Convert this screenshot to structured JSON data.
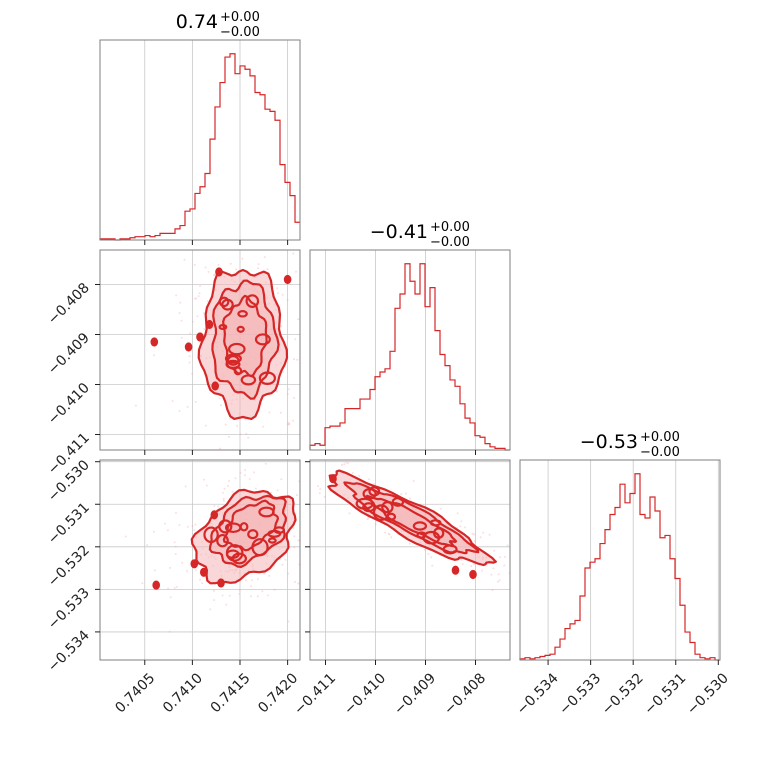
{
  "colors": {
    "series": "#d62728",
    "fill": "#f4b6b8",
    "scatter": "#f2a4a6",
    "frame": "#7f7f7f",
    "grid": "#c8c8c8"
  },
  "chart_data": {
    "type": "corner",
    "parameters": [
      {
        "name": "p0",
        "range": [
          0.74003,
          0.74213
        ],
        "ticks": [
          "0.7405",
          "0.7410",
          "0.7415",
          "0.7420"
        ],
        "tick_values": [
          0.7405,
          0.741,
          0.7415,
          0.742
        ],
        "title": {
          "main": "0.74",
          "sup": "+0.00",
          "sub": "−0.00"
        },
        "histogram": {
          "bin_start": 0.74003,
          "bin_width": 5.25e-05,
          "counts": [
            1,
            1,
            1,
            0,
            1,
            1,
            2,
            3,
            3,
            4,
            3,
            4,
            6,
            6,
            6,
            10,
            13,
            26,
            28,
            42,
            48,
            60,
            91,
            120,
            142,
            165,
            168,
            150,
            157,
            154,
            148,
            133,
            131,
            118,
            116,
            108,
            68,
            52,
            40,
            16
          ]
        }
      },
      {
        "name": "p1",
        "range": [
          -0.41131,
          -0.40731
        ],
        "ticks": [
          "−0.411",
          "−0.410",
          "−0.409",
          "−0.408"
        ],
        "tick_values": [
          -0.411,
          -0.41,
          -0.409,
          -0.408
        ],
        "title": {
          "main": "−0.41",
          "sup": "+0.00",
          "sub": "−0.00"
        },
        "histogram": {
          "bin_start": -0.41131,
          "bin_width": 0.0001,
          "counts": [
            3,
            4,
            3,
            14,
            15,
            15,
            17,
            26,
            26,
            26,
            32,
            32,
            38,
            46,
            49,
            51,
            62,
            89,
            98,
            117,
            106,
            98,
            117,
            90,
            102,
            75,
            60,
            53,
            44,
            40,
            29,
            20,
            17,
            9,
            8,
            4,
            2,
            1,
            1,
            0
          ]
        }
      },
      {
        "name": "p2",
        "range": [
          -0.53466,
          -0.52996
        ],
        "ticks": [
          "−0.534",
          "−0.533",
          "−0.532",
          "−0.531",
          "−0.530"
        ],
        "tick_values": [
          -0.534,
          -0.533,
          -0.532,
          -0.531,
          -0.53
        ],
        "title": {
          "main": "−0.53",
          "sup": "+0.00",
          "sub": "−0.00"
        },
        "histogram": {
          "bin_start": -0.53466,
          "bin_width": 0.0001175,
          "counts": [
            1,
            2,
            1,
            2,
            3,
            4,
            5,
            11,
            18,
            27,
            31,
            34,
            55,
            79,
            84,
            87,
            100,
            112,
            125,
            131,
            151,
            135,
            143,
            160,
            125,
            122,
            140,
            128,
            105,
            107,
            87,
            70,
            47,
            24,
            15,
            5,
            2,
            1,
            2,
            0
          ]
        }
      }
    ],
    "pairs": [
      {
        "x_param": 0,
        "y_param": 1,
        "levels": [
          {
            "cx": 0.74153,
            "cy": -0.40915,
            "rx": 0.00043,
            "ry": 0.00147
          },
          {
            "cx": 0.74154,
            "cy": -0.40908,
            "rx": 0.00033,
            "ry": 0.00112
          },
          {
            "cx": 0.74155,
            "cy": -0.40906,
            "rx": 0.00022,
            "ry": 0.00075
          }
        ],
        "blobs": [
          {
            "x": 0.74108,
            "y": -0.40905
          },
          {
            "x": 0.74118,
            "y": -0.4088
          },
          {
            "x": 0.74124,
            "y": -0.41003
          },
          {
            "x": 0.74096,
            "y": -0.40925
          },
          {
            "x": 0.742,
            "y": -0.4079
          },
          {
            "x": 0.74128,
            "y": -0.40775
          },
          {
            "x": 0.7406,
            "y": -0.40915
          }
        ]
      },
      {
        "x_param": 0,
        "y_param": 2,
        "levels": [
          {
            "cx": 0.74155,
            "cy": -0.53175,
            "rx": 0.00058,
            "ry": 0.0009,
            "angle": -38
          },
          {
            "cx": 0.7416,
            "cy": -0.5316,
            "rx": 0.00044,
            "ry": 0.00066,
            "angle": -38
          },
          {
            "cx": 0.74162,
            "cy": -0.5315,
            "rx": 0.0003,
            "ry": 0.00044,
            "angle": -38
          }
        ],
        "blobs": [
          {
            "x": 0.74102,
            "y": -0.5324
          },
          {
            "x": 0.74112,
            "y": -0.5326
          },
          {
            "x": 0.7413,
            "y": -0.53285
          },
          {
            "x": 0.74123,
            "y": -0.53125
          },
          {
            "x": 0.74062,
            "y": -0.5329
          }
        ]
      },
      {
        "x_param": 1,
        "y_param": 2,
        "levels": [
          {
            "cx": -0.40935,
            "cy": -0.53135,
            "rx": 0.0018,
            "ry": 0.0004,
            "angle": 28
          },
          {
            "cx": -0.4093,
            "cy": -0.53135,
            "rx": 0.0014,
            "ry": 0.0003,
            "angle": 28
          },
          {
            "cx": -0.40925,
            "cy": -0.5314,
            "rx": 0.00095,
            "ry": 0.0002,
            "angle": 28
          }
        ],
        "blobs": [
          {
            "x": -0.41085,
            "y": -0.5304
          },
          {
            "x": -0.4084,
            "y": -0.53255
          },
          {
            "x": -0.40805,
            "y": -0.53265
          }
        ]
      }
    ]
  }
}
